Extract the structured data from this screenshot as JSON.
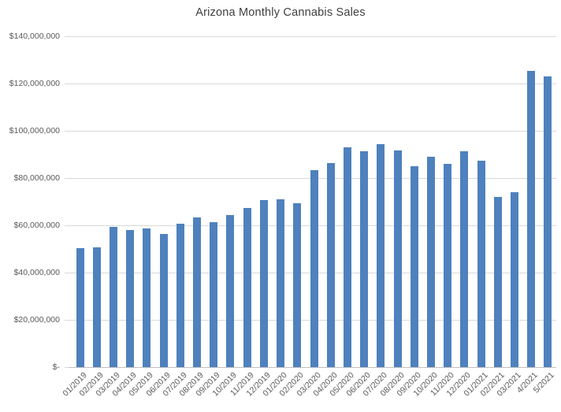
{
  "chart_data": {
    "type": "bar",
    "title": "Arizona Monthly Cannabis Sales",
    "xlabel": "",
    "ylabel": "",
    "legend": "none",
    "grid": true,
    "categories": [
      "01/2019",
      "02/2019",
      "03/2019",
      "04/2019",
      "05/2019",
      "06/2019",
      "07/2019",
      "08/2019",
      "09/2019",
      "10/2019",
      "11/2019",
      "12/2019",
      "01/2020",
      "02/2020",
      "03/2020",
      "04/2020",
      "05/2020",
      "06/2020",
      "07/2020",
      "08/2020",
      "09/2020",
      "10/2020",
      "11/2020",
      "12/2020",
      "01/2021",
      "02/2021",
      "03/2021",
      "4/2021",
      "5/2021"
    ],
    "values": [
      50200000,
      50600000,
      59200000,
      58000000,
      58600000,
      56200000,
      60800000,
      63200000,
      61200000,
      64500000,
      67200000,
      70600000,
      71000000,
      69400000,
      83400000,
      86400000,
      92900000,
      91200000,
      94200000,
      91800000,
      85100000,
      88900000,
      86000000,
      91400000,
      87300000,
      72100000,
      74100000,
      125200000,
      122900000
    ],
    "ylim": [
      0,
      140000000
    ],
    "ytick_interval": 20000000,
    "ytick_labels": [
      "$-",
      "$20,000,000",
      "$40,000,000",
      "$60,000,000",
      "$80,000,000",
      "$100,000,000",
      "$120,000,000",
      "$140,000,000"
    ],
    "colors": {
      "bar": "#4e81bd",
      "gridline": "#d9d9d9",
      "axis_line": "#bfbfbf",
      "tick_label": "#595959",
      "title": "#3f3f3f",
      "background": "#ffffff"
    }
  }
}
